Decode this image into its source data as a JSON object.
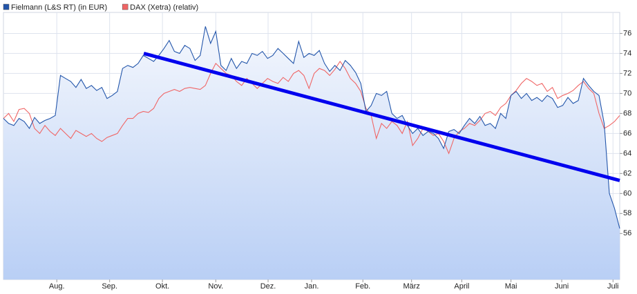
{
  "chart_data": {
    "type": "line",
    "categories_note_free": null,
    "series": [
      {
        "name": "Fielmann (L&S RT) (in EUR)",
        "color": "#2255aa",
        "area": true,
        "values": [
          67.5,
          67.0,
          66.8,
          67.5,
          67.2,
          66.5,
          67.6,
          67.0,
          67.3,
          67.5,
          67.8,
          71.8,
          71.5,
          71.2,
          70.6,
          71.4,
          70.5,
          70.8,
          70.3,
          70.6,
          69.5,
          69.8,
          70.2,
          72.5,
          72.8,
          72.6,
          73.0,
          73.8,
          73.5,
          73.2,
          73.8,
          74.5,
          75.3,
          74.2,
          74.0,
          74.8,
          74.5,
          73.3,
          73.8,
          76.7,
          75.0,
          76.2,
          72.8,
          72.3,
          73.5,
          72.5,
          73.2,
          73.0,
          74.0,
          73.8,
          74.2,
          73.5,
          73.8,
          74.5,
          74.0,
          73.5,
          73.0,
          75.2,
          73.6,
          74.0,
          73.8,
          74.3,
          73.0,
          72.2,
          72.8,
          72.3,
          73.3,
          72.8,
          72.1,
          71.0,
          68.2,
          68.8,
          70.0,
          69.8,
          70.2,
          68.0,
          67.5,
          67.8,
          66.8,
          66.0,
          66.5,
          65.8,
          66.2,
          66.0,
          65.5,
          64.5,
          66.2,
          66.4,
          66.0,
          66.8,
          67.5,
          67.0,
          67.7,
          66.8,
          67.0,
          66.5,
          68.0,
          67.5,
          69.8,
          70.2,
          69.5,
          70.0,
          69.3,
          69.6,
          69.2,
          69.8,
          69.5,
          68.6,
          68.8,
          69.6,
          69.0,
          69.3,
          71.5,
          70.8,
          70.2,
          69.8,
          67.0,
          60.0,
          58.5,
          56.5
        ]
      },
      {
        "name": "DAX (Xetra) (relativ)",
        "color": "#f06565",
        "area": false,
        "values": [
          67.5,
          68.0,
          67.2,
          68.4,
          68.5,
          68.0,
          66.5,
          66.0,
          66.8,
          66.2,
          65.8,
          66.5,
          66.0,
          65.5,
          66.3,
          66.0,
          65.7,
          66.0,
          65.5,
          65.2,
          65.6,
          65.8,
          66.0,
          66.8,
          67.5,
          67.5,
          68.0,
          68.2,
          68.1,
          68.5,
          69.5,
          70.0,
          70.2,
          70.4,
          70.2,
          70.5,
          70.6,
          70.5,
          70.4,
          70.8,
          72.0,
          73.0,
          72.5,
          72.0,
          71.8,
          71.2,
          70.8,
          71.5,
          71.0,
          70.5,
          71.0,
          71.5,
          71.2,
          71.0,
          71.6,
          71.2,
          72.0,
          72.3,
          71.8,
          70.5,
          72.0,
          72.5,
          72.3,
          71.8,
          72.4,
          73.2,
          72.5,
          71.5,
          71.0,
          70.2,
          68.5,
          67.8,
          65.5,
          67.0,
          66.5,
          67.2,
          66.8,
          66.0,
          67.2,
          64.8,
          65.5,
          66.5,
          66.2,
          65.8,
          66.0,
          65.2,
          64.0,
          65.5,
          66.2,
          66.5,
          67.0,
          66.8,
          67.3,
          68.0,
          68.2,
          67.8,
          68.6,
          69.0,
          69.8,
          70.3,
          71.0,
          71.5,
          71.2,
          70.8,
          71.0,
          70.2,
          70.6,
          69.5,
          69.8,
          70.0,
          70.3,
          70.8,
          71.2,
          70.5,
          70.0,
          68.0,
          66.5,
          66.8,
          67.2,
          67.8
        ]
      }
    ],
    "trendline": {
      "color": "#0000ee",
      "x": [
        27.1,
        119
      ],
      "values": [
        74.0,
        61.3
      ]
    },
    "xlim": [
      0,
      119
    ],
    "xticks": [
      {
        "value": 10.3,
        "label": "Aug."
      },
      {
        "value": 20.5,
        "label": "Sep."
      },
      {
        "value": 30.7,
        "label": "Okt."
      },
      {
        "value": 41.0,
        "label": "Nov."
      },
      {
        "value": 51.1,
        "label": "Dez."
      },
      {
        "value": 59.5,
        "label": "Jan."
      },
      {
        "value": 69.4,
        "label": "Feb."
      },
      {
        "value": 78.8,
        "label": "März"
      },
      {
        "value": 88.5,
        "label": "April"
      },
      {
        "value": 98.0,
        "label": "Mai"
      },
      {
        "value": 107.8,
        "label": "Juni"
      },
      {
        "value": 117.7,
        "label": "Juli"
      }
    ],
    "ylim": [
      51.4,
      78.1
    ],
    "yticks": [
      56,
      58,
      60,
      62,
      64,
      66,
      68,
      70,
      72,
      74,
      76
    ],
    "grid": true,
    "legend": "top-left"
  }
}
